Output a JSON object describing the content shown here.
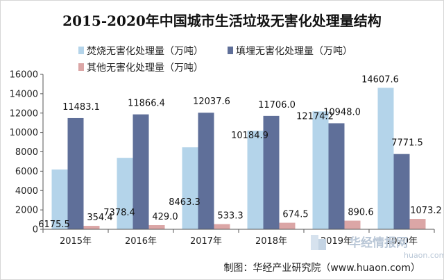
{
  "chart_data": {
    "type": "bar",
    "title": "2015-2020年中国城市生活垃圾无害化处理量结构",
    "categories": [
      "2015年",
      "2016年",
      "2017年",
      "2018年",
      "2019年",
      "2020年"
    ],
    "series": [
      {
        "name": "焚烧无害化处理量（万吨）",
        "color": "#b4d4ea",
        "values": [
          6175.5,
          7378.4,
          8463.3,
          10184.9,
          12174.2,
          14607.6
        ]
      },
      {
        "name": "填埋无害化处理量（万吨）",
        "color": "#5f6f99",
        "values": [
          11483.1,
          11866.4,
          12037.6,
          11706.0,
          10948.0,
          7771.5
        ]
      },
      {
        "name": "其他无害化处理量（万吨）",
        "color": "#dba6a6",
        "values": [
          354.4,
          429.0,
          533.3,
          674.5,
          890.6,
          1073.2
        ]
      }
    ],
    "data_labels": [
      [
        "6175.5",
        "7378.4",
        "8463.3",
        "10184.9",
        "12174.2",
        "14607.6"
      ],
      [
        "11483.1",
        "11866.4",
        "12037.6",
        "11706.0",
        "10948.0",
        "7771.5"
      ],
      [
        "354.4",
        "429.0",
        "533.3",
        "674.5",
        "890.6",
        "1073.2"
      ]
    ],
    "ylim": [
      0,
      16000
    ],
    "yticks": [
      0,
      2000,
      4000,
      6000,
      8000,
      10000,
      12000,
      14000,
      16000
    ],
    "xlabel": "",
    "ylabel": "",
    "grid": false,
    "legend_position": "top"
  },
  "source": "制图：华经产业研究院（www.huaon.com）",
  "watermark": {
    "text": "华经情报网",
    "url": "huaon.com"
  }
}
